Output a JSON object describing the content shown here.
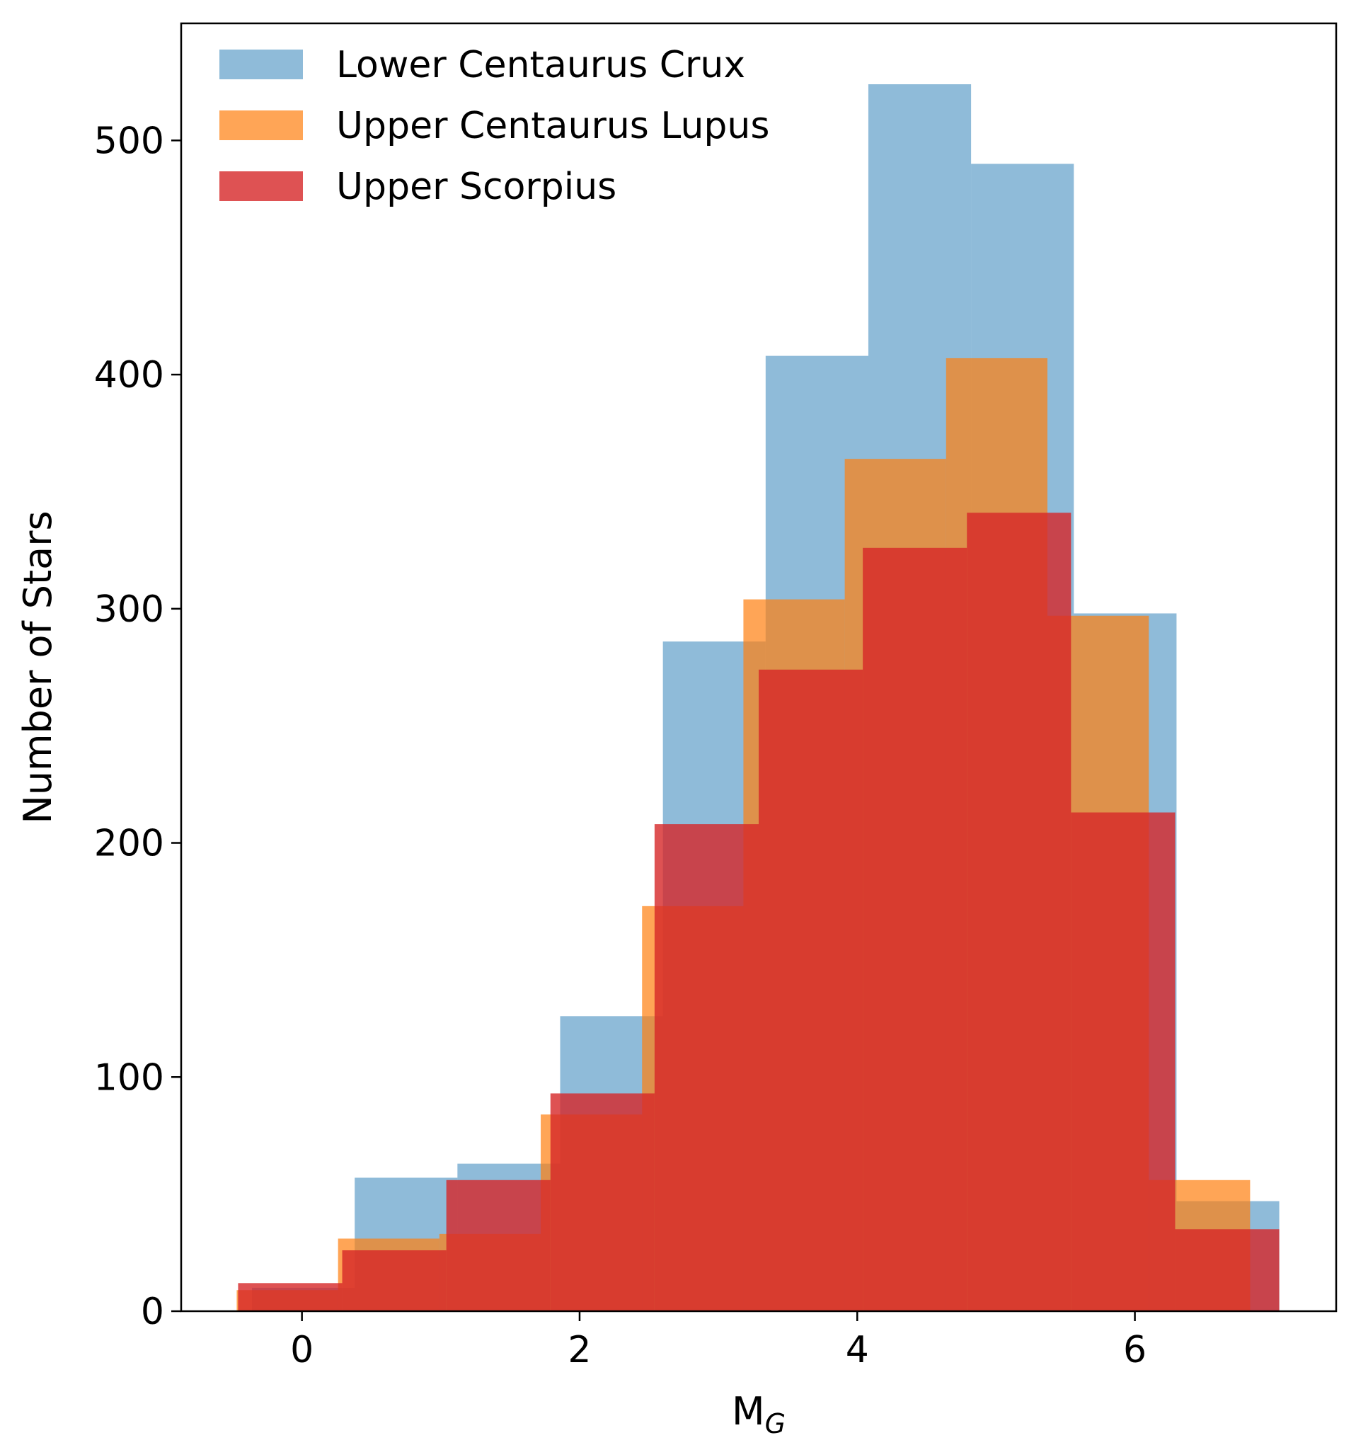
{
  "chart_data": {
    "type": "histogram",
    "title": "",
    "xlabel": "M",
    "xlabel_subscript": "G",
    "ylabel": "Number of Stars",
    "xlim": [
      -0.87,
      7.45
    ],
    "ylim": [
      0,
      550
    ],
    "xticks": [
      0,
      2,
      4,
      6
    ],
    "yticks": [
      0,
      100,
      200,
      300,
      400,
      500
    ],
    "grid": false,
    "legend_position": "top-left",
    "series": [
      {
        "name": "Lower Centaurus Crux",
        "color": "#1f77b4",
        "opacity": 0.5,
        "bin_edges": [
          -0.36,
          0.38,
          1.12,
          1.86,
          2.6,
          3.34,
          4.08,
          4.82,
          5.56,
          6.3,
          7.04
        ],
        "counts": [
          10,
          57,
          63,
          126,
          286,
          408,
          524,
          490,
          298,
          47
        ]
      },
      {
        "name": "Upper Centaurus Lupus",
        "color": "#ff7f0e",
        "opacity": 0.7,
        "bin_edges": [
          -0.47,
          0.26,
          0.99,
          1.72,
          2.45,
          3.18,
          3.91,
          4.64,
          5.37,
          6.1,
          6.83
        ],
        "counts": [
          9,
          31,
          33,
          84,
          173,
          304,
          364,
          407,
          297,
          56
        ]
      },
      {
        "name": "Upper Scorpius",
        "color": "#d62728",
        "opacity": 0.8,
        "bin_edges": [
          -0.46,
          0.29,
          1.04,
          1.79,
          2.54,
          3.29,
          4.04,
          4.79,
          5.54,
          6.29,
          7.04
        ],
        "counts": [
          12,
          26,
          56,
          93,
          208,
          274,
          326,
          341,
          213,
          35
        ]
      }
    ]
  }
}
